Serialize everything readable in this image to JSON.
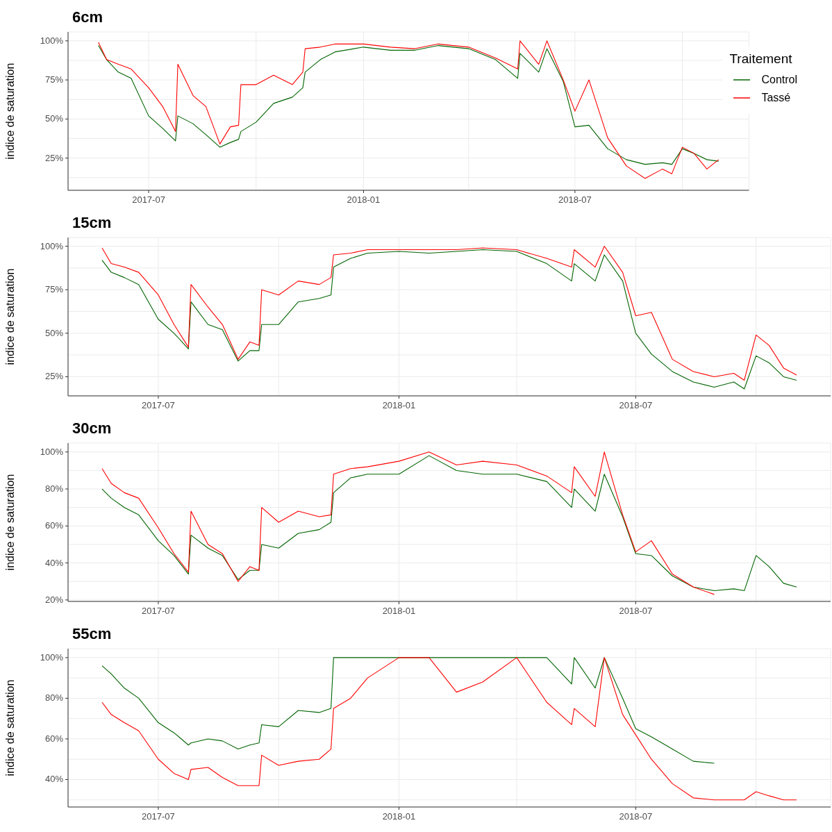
{
  "chart_data": [
    {
      "type": "line",
      "title": "6cm",
      "ylabel": "indice de saturation",
      "legend_title": "Traitement",
      "legend": "top right",
      "grid": true,
      "marker": "none",
      "x": [
        "2017-05-19",
        "2017-05-26",
        "2017-06-05",
        "2017-06-16",
        "2017-07-01",
        "2017-07-13",
        "2017-07-24",
        "2017-07-26",
        "2017-08-08",
        "2017-08-19",
        "2017-08-31",
        "2017-09-09",
        "2017-09-16",
        "2017-09-18",
        "2017-10-01",
        "2017-10-16",
        "2017-11-01",
        "2017-11-10",
        "2017-11-12",
        "2017-11-25",
        "2017-12-08",
        "2018-01-01",
        "2018-01-24",
        "2018-02-14",
        "2018-03-06",
        "2018-04-01",
        "2018-04-24",
        "2018-05-13",
        "2018-05-15",
        "2018-05-31",
        "2018-06-07",
        "2018-06-21",
        "2018-07-01",
        "2018-07-13",
        "2018-07-29",
        "2018-08-14",
        "2018-08-30",
        "2018-09-14",
        "2018-09-22",
        "2018-10-01",
        "2018-10-11",
        "2018-10-22",
        "2018-11-01"
      ],
      "xlim": [
        "2017-04-23",
        "2018-11-27"
      ],
      "xticks": [
        {
          "value": "2017-07",
          "label": "2017-07"
        },
        {
          "value": "2017-10",
          "label": null
        },
        {
          "value": "2018-01",
          "label": "2018-01"
        },
        {
          "value": "2018-04",
          "label": null
        },
        {
          "value": "2018-07",
          "label": "2018-07"
        },
        {
          "value": "2018-10",
          "label": null
        }
      ],
      "ylim": [
        4.4,
        105.7
      ],
      "yticks": [
        {
          "value": 12.5,
          "label": null
        },
        {
          "value": 25,
          "label": "25%"
        },
        {
          "value": 37.5,
          "label": null
        },
        {
          "value": 50,
          "label": "50%"
        },
        {
          "value": 62.5,
          "label": null
        },
        {
          "value": 75,
          "label": "75%"
        },
        {
          "value": 87.5,
          "label": null
        },
        {
          "value": 100,
          "label": "100%"
        }
      ],
      "series": [
        {
          "name": "Control",
          "color": "#006400",
          "values": [
            97,
            88,
            80,
            76,
            52,
            44,
            36,
            52,
            47,
            40,
            32,
            35,
            37,
            42,
            48,
            60,
            64,
            70,
            80,
            88,
            93,
            96,
            94,
            94,
            97,
            95,
            88,
            76,
            92,
            80,
            95,
            74,
            45,
            46,
            31,
            24,
            21,
            22,
            21,
            31,
            28,
            24,
            23
          ]
        },
        {
          "name": "Tassé",
          "color": "#ff0000",
          "values": [
            99,
            88,
            85,
            82,
            70,
            58,
            42,
            85,
            65,
            58,
            34,
            45,
            46,
            72,
            72,
            78,
            72,
            80,
            95,
            96,
            98,
            98,
            96,
            95,
            98,
            96,
            89,
            82,
            100,
            85,
            100,
            75,
            55,
            75,
            38,
            20,
            12,
            18,
            15,
            32,
            28,
            18,
            24
          ]
        }
      ]
    },
    {
      "type": "line",
      "title": "15cm",
      "ylabel": "indice de saturation",
      "legend": false,
      "grid": true,
      "marker": "none",
      "x": [
        "2017-05-19",
        "2017-05-26",
        "2017-06-05",
        "2017-06-16",
        "2017-07-01",
        "2017-07-13",
        "2017-07-24",
        "2017-07-26",
        "2017-08-08",
        "2017-08-19",
        "2017-08-31",
        "2017-09-09",
        "2017-09-16",
        "2017-09-18",
        "2017-10-01",
        "2017-10-16",
        "2017-11-01",
        "2017-11-10",
        "2017-11-12",
        "2017-11-25",
        "2017-12-08",
        "2018-01-01",
        "2018-01-24",
        "2018-02-14",
        "2018-03-06",
        "2018-04-01",
        "2018-04-24",
        "2018-05-13",
        "2018-05-15",
        "2018-05-31",
        "2018-06-07",
        "2018-06-21",
        "2018-07-01",
        "2018-07-13",
        "2018-07-29",
        "2018-08-14",
        "2018-08-30",
        "2018-09-14",
        "2018-09-22",
        "2018-10-01",
        "2018-10-11",
        "2018-10-22",
        "2018-11-01"
      ],
      "xlim": [
        "2017-04-23",
        "2018-11-27"
      ],
      "xticks": [
        {
          "value": "2017-07",
          "label": "2017-07"
        },
        {
          "value": "2017-10",
          "label": null
        },
        {
          "value": "2018-01",
          "label": "2018-01"
        },
        {
          "value": "2018-04",
          "label": null
        },
        {
          "value": "2018-07",
          "label": "2018-07"
        },
        {
          "value": "2018-10",
          "label": null
        }
      ],
      "ylim": [
        14,
        105
      ],
      "yticks": [
        {
          "value": 25,
          "label": "25%"
        },
        {
          "value": 37.5,
          "label": null
        },
        {
          "value": 50,
          "label": "50%"
        },
        {
          "value": 62.5,
          "label": null
        },
        {
          "value": 75,
          "label": "75%"
        },
        {
          "value": 87.5,
          "label": null
        },
        {
          "value": 100,
          "label": "100%"
        }
      ],
      "series": [
        {
          "color": "#006400",
          "values": [
            92,
            85,
            82,
            78,
            58,
            50,
            41,
            68,
            55,
            52,
            34,
            40,
            40,
            55,
            55,
            68,
            70,
            72,
            88,
            93,
            96,
            97,
            96,
            97,
            98,
            97,
            90,
            80,
            90,
            80,
            95,
            80,
            50,
            38,
            28,
            22,
            19,
            22,
            18,
            37,
            33,
            25,
            23
          ]
        },
        {
          "color": "#ff0000",
          "values": [
            99,
            90,
            88,
            85,
            72,
            55,
            42,
            78,
            65,
            55,
            35,
            45,
            43,
            75,
            72,
            80,
            78,
            82,
            95,
            96,
            98,
            98,
            98,
            98,
            99,
            98,
            93,
            88,
            98,
            88,
            100,
            85,
            60,
            62,
            35,
            28,
            25,
            27,
            23,
            49,
            43,
            30,
            26
          ]
        }
      ]
    },
    {
      "type": "line",
      "title": "30cm",
      "ylabel": "indice de saturation",
      "legend": false,
      "grid": true,
      "marker": "none",
      "x": [
        "2017-05-19",
        "2017-05-26",
        "2017-06-05",
        "2017-06-16",
        "2017-07-01",
        "2017-07-13",
        "2017-07-24",
        "2017-07-26",
        "2017-08-08",
        "2017-08-19",
        "2017-08-31",
        "2017-09-09",
        "2017-09-16",
        "2017-09-18",
        "2017-10-01",
        "2017-10-16",
        "2017-11-01",
        "2017-11-10",
        "2017-11-12",
        "2017-11-25",
        "2017-12-08",
        "2018-01-01",
        "2018-01-24",
        "2018-02-14",
        "2018-03-06",
        "2018-04-01",
        "2018-04-24",
        "2018-05-13",
        "2018-05-15",
        "2018-05-31",
        "2018-06-07",
        "2018-06-21",
        "2018-07-01",
        "2018-07-13",
        "2018-07-29",
        "2018-08-14",
        "2018-08-30",
        "2018-09-14",
        "2018-09-22",
        "2018-10-01",
        "2018-10-11",
        "2018-10-22",
        "2018-11-01"
      ],
      "xlim": [
        "2017-04-23",
        "2018-11-27"
      ],
      "xticks": [
        {
          "value": "2017-07",
          "label": "2017-07"
        },
        {
          "value": "2017-10",
          "label": null
        },
        {
          "value": "2018-01",
          "label": "2018-01"
        },
        {
          "value": "2018-04",
          "label": null
        },
        {
          "value": "2018-07",
          "label": "2018-07"
        },
        {
          "value": "2018-10",
          "label": null
        }
      ],
      "ylim": [
        19.2,
        104.8
      ],
      "yticks": [
        {
          "value": 20,
          "label": "20%"
        },
        {
          "value": 30,
          "label": null
        },
        {
          "value": 40,
          "label": "40%"
        },
        {
          "value": 50,
          "label": null
        },
        {
          "value": 60,
          "label": "60%"
        },
        {
          "value": 70,
          "label": null
        },
        {
          "value": 80,
          "label": "80%"
        },
        {
          "value": 90,
          "label": null
        },
        {
          "value": 100,
          "label": "100%"
        }
      ],
      "series": [
        {
          "color": "#006400",
          "values": [
            80,
            75,
            70,
            66,
            52,
            44,
            34,
            55,
            48,
            44,
            31,
            36,
            36,
            50,
            48,
            56,
            58,
            62,
            78,
            86,
            88,
            88,
            98,
            90,
            88,
            88,
            84,
            70,
            80,
            68,
            88,
            65,
            45,
            44,
            33,
            27,
            25,
            26,
            25,
            44,
            38,
            29,
            27
          ]
        },
        {
          "color": "#ff0000",
          "values": [
            91,
            83,
            78,
            75,
            59,
            45,
            35,
            68,
            50,
            45,
            30,
            38,
            36,
            70,
            62,
            68,
            65,
            66,
            88,
            91,
            92,
            95,
            100,
            93,
            95,
            93,
            87,
            78,
            92,
            76,
            100,
            66,
            46,
            52,
            34,
            27,
            23,
            null,
            null,
            null,
            null,
            null,
            null
          ]
        }
      ]
    },
    {
      "type": "line",
      "title": "55cm",
      "ylabel": "indice de saturation",
      "legend": false,
      "grid": true,
      "marker": "none",
      "x": [
        "2017-05-19",
        "2017-05-26",
        "2017-06-05",
        "2017-06-16",
        "2017-07-01",
        "2017-07-13",
        "2017-07-24",
        "2017-07-26",
        "2017-08-08",
        "2017-08-19",
        "2017-08-31",
        "2017-09-09",
        "2017-09-16",
        "2017-09-18",
        "2017-10-01",
        "2017-10-16",
        "2017-11-01",
        "2017-11-10",
        "2017-11-12",
        "2017-11-25",
        "2017-12-08",
        "2018-01-01",
        "2018-01-24",
        "2018-02-14",
        "2018-03-06",
        "2018-04-01",
        "2018-04-24",
        "2018-05-13",
        "2018-05-15",
        "2018-05-31",
        "2018-06-07",
        "2018-06-21",
        "2018-07-01",
        "2018-07-13",
        "2018-07-29",
        "2018-08-14",
        "2018-08-30",
        "2018-09-14",
        "2018-09-22",
        "2018-10-01",
        "2018-10-11",
        "2018-10-22",
        "2018-11-01"
      ],
      "xlim": [
        "2017-04-23",
        "2018-11-27"
      ],
      "xticks": [
        {
          "value": "2017-07",
          "label": "2017-07"
        },
        {
          "value": "2017-10",
          "label": null
        },
        {
          "value": "2018-01",
          "label": "2018-01"
        },
        {
          "value": "2018-04",
          "label": null
        },
        {
          "value": "2018-07",
          "label": "2018-07"
        },
        {
          "value": "2018-10",
          "label": null
        }
      ],
      "ylim": [
        26.5,
        104.4
      ],
      "yticks": [
        {
          "value": 30,
          "label": null
        },
        {
          "value": 40,
          "label": "40%"
        },
        {
          "value": 50,
          "label": null
        },
        {
          "value": 60,
          "label": "60%"
        },
        {
          "value": 70,
          "label": null
        },
        {
          "value": 80,
          "label": "80%"
        },
        {
          "value": 90,
          "label": null
        },
        {
          "value": 100,
          "label": "100%"
        }
      ],
      "series": [
        {
          "color": "#006400",
          "values": [
            96,
            92,
            85,
            80,
            68,
            63,
            57,
            58,
            60,
            59,
            55,
            57,
            58,
            67,
            66,
            74,
            73,
            75,
            100,
            100,
            100,
            100,
            100,
            100,
            100,
            100,
            100,
            87,
            100,
            85,
            100,
            80,
            65,
            61,
            55,
            49,
            48,
            null,
            null,
            null,
            null,
            null,
            null
          ]
        },
        {
          "color": "#ff0000",
          "values": [
            78,
            72,
            68,
            64,
            50,
            43,
            40,
            45,
            46,
            41,
            37,
            37,
            37,
            52,
            47,
            49,
            50,
            55,
            75,
            80,
            90,
            100,
            100,
            83,
            88,
            100,
            78,
            67,
            75,
            66,
            100,
            72,
            62,
            50,
            38,
            31,
            30,
            30,
            30,
            34,
            32,
            30,
            30
          ]
        }
      ]
    }
  ]
}
